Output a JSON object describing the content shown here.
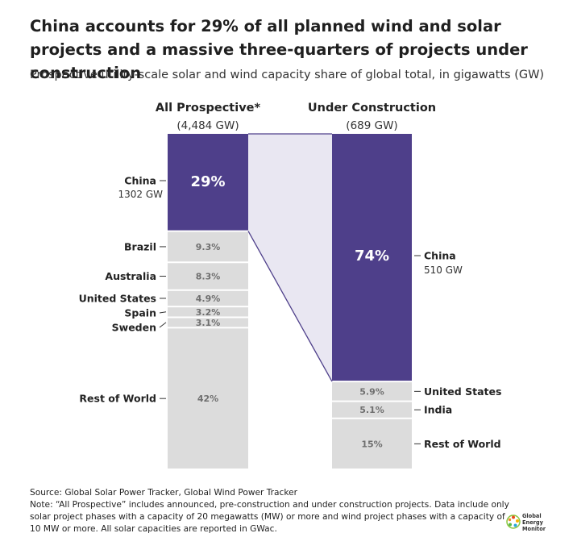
{
  "title": "China accounts for 29% of all planned wind and solar projects and a massive three-quarters of projects under construction",
  "subtitle": "Prospective utility-scale solar and wind capacity share of global total, in gigawatts (GW)",
  "source": "Source: Global Solar Power Tracker, Global Wind Power Tracker",
  "note": "Note: “All Prospective” includes announced, pre-construction and under construction projects. Data include only solar project phases with a capacity of 20 megawatts (MW) or more and wind project phases with a capacity of 10 MW or more. All solar capacities are reported in GWac.",
  "logo": {
    "lines": [
      "Global",
      "Energy",
      "Monitor"
    ]
  },
  "colors": {
    "china": "#4e3f8a",
    "other": "#dcdcdc",
    "connector": "#e9e7f2",
    "label_on_gray": "#6f6f6f"
  },
  "chart_data": {
    "type": "bar",
    "subtype": "stacked-100-percent",
    "columns": [
      {
        "name": "All Prospective*",
        "total": "(4,484 GW)",
        "segments": [
          {
            "category": "China",
            "sublabel": "1302 GW",
            "value": 29,
            "label": "29%"
          },
          {
            "category": "Brazil",
            "value": 9.3,
            "label": "9.3%"
          },
          {
            "category": "Australia",
            "value": 8.3,
            "label": "8.3%"
          },
          {
            "category": "United States",
            "value": 4.9,
            "label": "4.9%"
          },
          {
            "category": "Spain",
            "value": 3.2,
            "label": "3.2%"
          },
          {
            "category": "Sweden",
            "value": 3.1,
            "label": "3.1%"
          },
          {
            "category": "Rest of World",
            "value": 42,
            "label": "42%"
          }
        ]
      },
      {
        "name": "Under Construction",
        "total": "(689 GW)",
        "segments": [
          {
            "category": "China",
            "sublabel": "510 GW",
            "value": 74,
            "label": "74%"
          },
          {
            "category": "United States",
            "value": 5.9,
            "label": "5.9%"
          },
          {
            "category": "India",
            "value": 5.1,
            "label": "5.1%"
          },
          {
            "category": "Rest of World",
            "value": 15,
            "label": "15%"
          }
        ]
      }
    ]
  }
}
